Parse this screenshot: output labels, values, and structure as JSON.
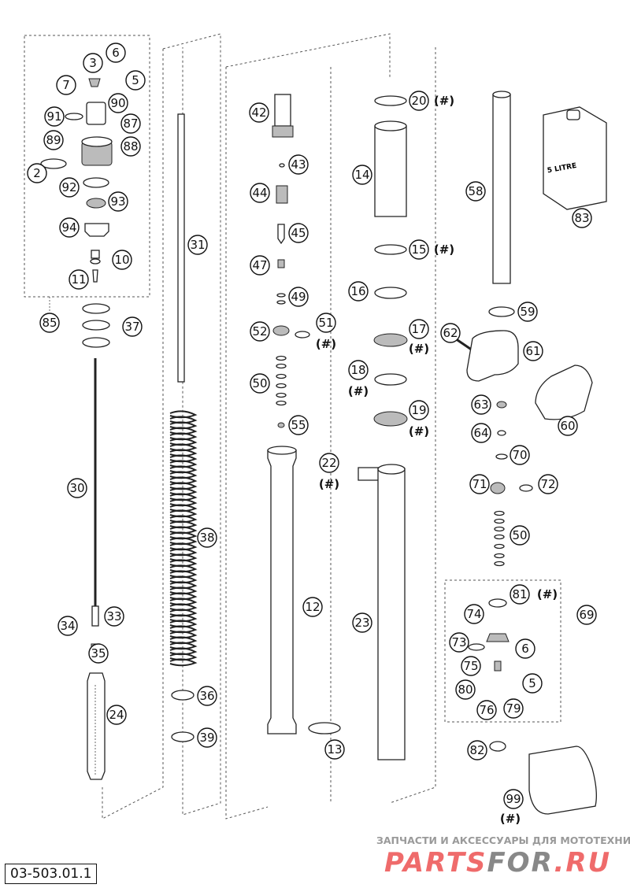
{
  "diagram_code": "03-503.01.1",
  "watermark": {
    "tagline": "ЗАПЧАСТИ И АКСЕССУАРЫ ДЛЯ МОТОТЕХНИКИ",
    "brand_part1": "PARTS",
    "brand_part2": "FOR",
    "brand_part3": ".RU",
    "colors": {
      "red": "#ef6b6b",
      "grey": "#888888"
    }
  },
  "hash_note": "(#)",
  "callouts": [
    "3",
    "6",
    "7",
    "5",
    "90",
    "91",
    "87",
    "89",
    "88",
    "2",
    "92",
    "93",
    "94",
    "10",
    "11",
    "85",
    "37",
    "30",
    "34",
    "33",
    "35",
    "24",
    "31",
    "38",
    "36",
    "39",
    "42",
    "43",
    "44",
    "45",
    "47",
    "49",
    "52",
    "51",
    "50",
    "55",
    "12",
    "13",
    "22",
    "20",
    "14",
    "15",
    "16",
    "17",
    "18",
    "19",
    "23",
    "58",
    "83",
    "59",
    "62",
    "61",
    "63",
    "64",
    "60",
    "70",
    "71",
    "72",
    "50",
    "81",
    "69",
    "74",
    "73",
    "6",
    "75",
    "5",
    "80",
    "76",
    "79",
    "82",
    "99"
  ],
  "canister_label": "5 LITRE"
}
